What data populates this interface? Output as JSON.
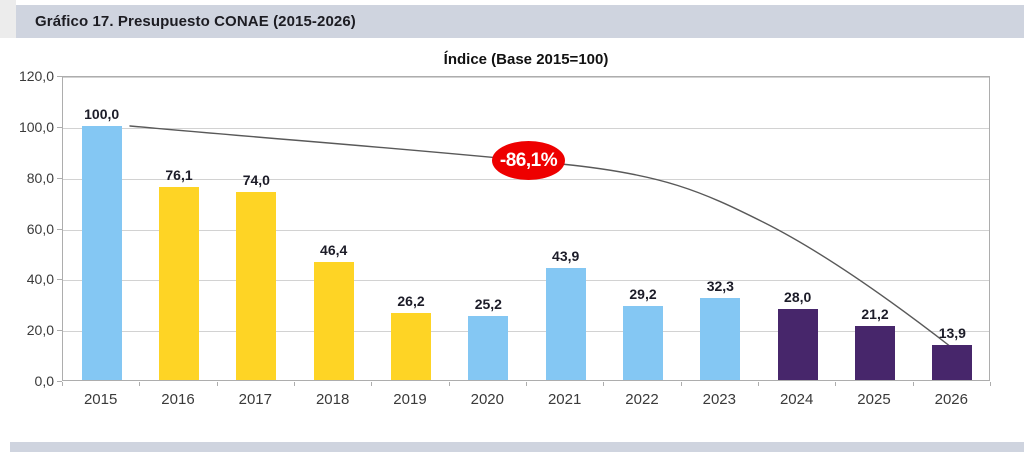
{
  "page": {
    "header_title": "Gráfico 17. Presupuesto CONAE (2015-2026)"
  },
  "chart_data": {
    "type": "bar",
    "title": "Índice (Base 2015=100)",
    "categories": [
      "2015",
      "2016",
      "2017",
      "2018",
      "2019",
      "2020",
      "2021",
      "2022",
      "2023",
      "2024",
      "2025",
      "2026"
    ],
    "values": [
      100.0,
      76.1,
      74.0,
      46.4,
      26.2,
      25.2,
      43.9,
      29.2,
      32.3,
      28.0,
      21.2,
      13.9
    ],
    "value_labels": [
      "100,0",
      "76,1",
      "74,0",
      "46,4",
      "26,2",
      "25,2",
      "43,9",
      "29,2",
      "32,3",
      "28,0",
      "21,2",
      "13,9"
    ],
    "bar_color_keys": [
      "blue",
      "yellow",
      "yellow",
      "yellow",
      "yellow",
      "blue",
      "blue",
      "blue",
      "blue",
      "purple",
      "purple",
      "purple"
    ],
    "palette": {
      "blue": "#84c7f3",
      "yellow": "#fed425",
      "purple": "#47266b"
    },
    "ylim": [
      0,
      120
    ],
    "ytick_values": [
      0,
      20,
      40,
      60,
      80,
      100,
      120
    ],
    "ytick_labels": [
      "0,0",
      "20,0",
      "40,0",
      "60,0",
      "80,0",
      "100,0",
      "120,0"
    ],
    "grid": true,
    "legend": "none",
    "annotation": {
      "text": "-86,1%",
      "fill": "#ee0000",
      "text_color": "#ffffff"
    },
    "trendline": {
      "description": "curve from 2015 value 100 down to 2026 value 13.9",
      "color": "#595959"
    }
  }
}
